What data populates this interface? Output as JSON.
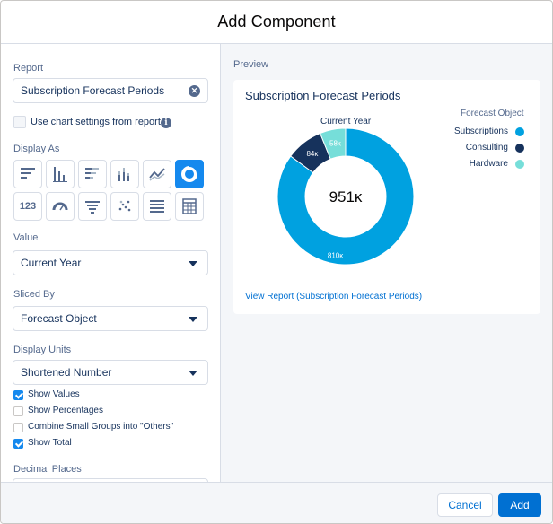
{
  "modal": {
    "title": "Add Component"
  },
  "form": {
    "report_label": "Report",
    "report_value": "Subscription Forecast Periods",
    "use_chart_settings_label": "Use chart settings from report",
    "display_as_label": "Display As",
    "display_as_options": [
      "horizontal-bar",
      "vertical-bar",
      "stacked-horizontal-bar",
      "stacked-vertical-bar",
      "line",
      "donut",
      "metric",
      "gauge",
      "funnel",
      "scatter",
      "lightning-table",
      "table"
    ],
    "display_as_selected": "donut",
    "value_label": "Value",
    "value_selected": "Current Year",
    "sliced_by_label": "Sliced By",
    "sliced_by_selected": "Forecast Object",
    "display_units_label": "Display Units",
    "display_units_selected": "Shortened Number",
    "checkboxes": [
      {
        "label": "Show Values",
        "checked": true
      },
      {
        "label": "Show Percentages",
        "checked": false
      },
      {
        "label": "Combine Small Groups into \"Others\"",
        "checked": false
      },
      {
        "label": "Show Total",
        "checked": true
      }
    ],
    "decimal_places_label": "Decimal Places"
  },
  "preview": {
    "label": "Preview",
    "card_title": "Subscription Forecast Periods",
    "view_report_link": "View Report (Subscription Forecast Periods)"
  },
  "chart_data": {
    "type": "pie",
    "subtitle": "Current Year",
    "legend_title": "Forecast Object",
    "legend_position": "right",
    "total_label": "951ĸ",
    "categories": [
      "Subscriptions",
      "Consulting",
      "Hardware"
    ],
    "values": [
      810,
      84,
      58
    ],
    "value_labels": [
      "810ĸ",
      "84ĸ",
      "58ĸ"
    ],
    "colors": [
      "#00a1e0",
      "#16325c",
      "#76ded9"
    ]
  },
  "footer": {
    "cancel_label": "Cancel",
    "add_label": "Add"
  },
  "colors": {
    "brand": "#0070d2",
    "selected_icon": "#1589ee",
    "text": "#16325c",
    "muted": "#54698d"
  }
}
